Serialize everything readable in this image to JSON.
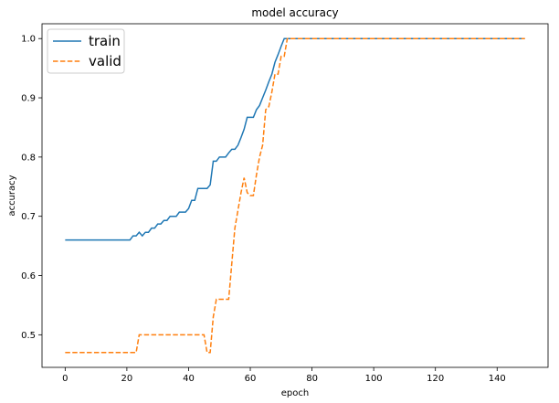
{
  "chart_data": {
    "type": "line",
    "title": "model accuracy",
    "xlabel": "epoch",
    "ylabel": "accuracy",
    "xlim": [
      -7.5,
      156.5
    ],
    "ylim": [
      0.445,
      1.025
    ],
    "x_ticks": [
      0,
      20,
      40,
      60,
      80,
      100,
      120,
      140
    ],
    "y_ticks": [
      0.5,
      0.6,
      0.7,
      0.8,
      0.9,
      1.0
    ],
    "y_tick_labels": [
      "0.5",
      "0.6",
      "0.7",
      "0.8",
      "0.9",
      "1.0"
    ],
    "grid": false,
    "legend_position": "top-left",
    "series": [
      {
        "name": "train",
        "color": "#1f77b4",
        "style": "solid",
        "points": [
          [
            0,
            0.66
          ],
          [
            21,
            0.66
          ],
          [
            22,
            0.667
          ],
          [
            23,
            0.667
          ],
          [
            24,
            0.673
          ],
          [
            25,
            0.667
          ],
          [
            26,
            0.673
          ],
          [
            27,
            0.673
          ],
          [
            28,
            0.68
          ],
          [
            29,
            0.68
          ],
          [
            30,
            0.687
          ],
          [
            31,
            0.687
          ],
          [
            32,
            0.693
          ],
          [
            33,
            0.693
          ],
          [
            34,
            0.7
          ],
          [
            35,
            0.7
          ],
          [
            36,
            0.7
          ],
          [
            37,
            0.707
          ],
          [
            38,
            0.707
          ],
          [
            39,
            0.707
          ],
          [
            40,
            0.713
          ],
          [
            41,
            0.727
          ],
          [
            42,
            0.727
          ],
          [
            43,
            0.747
          ],
          [
            44,
            0.747
          ],
          [
            45,
            0.747
          ],
          [
            46,
            0.747
          ],
          [
            47,
            0.753
          ],
          [
            48,
            0.793
          ],
          [
            49,
            0.793
          ],
          [
            50,
            0.8
          ],
          [
            51,
            0.8
          ],
          [
            52,
            0.8
          ],
          [
            53,
            0.807
          ],
          [
            54,
            0.813
          ],
          [
            55,
            0.813
          ],
          [
            56,
            0.82
          ],
          [
            57,
            0.833
          ],
          [
            58,
            0.847
          ],
          [
            59,
            0.867
          ],
          [
            60,
            0.867
          ],
          [
            61,
            0.867
          ],
          [
            62,
            0.88
          ],
          [
            63,
            0.887
          ],
          [
            64,
            0.9
          ],
          [
            65,
            0.913
          ],
          [
            66,
            0.927
          ],
          [
            67,
            0.94
          ],
          [
            68,
            0.96
          ],
          [
            69,
            0.973
          ],
          [
            70,
            0.987
          ],
          [
            71,
            1.0
          ],
          [
            149,
            1.0
          ]
        ]
      },
      {
        "name": "valid",
        "color": "#ff7f0e",
        "style": "dashed",
        "points": [
          [
            0,
            0.47
          ],
          [
            23,
            0.47
          ],
          [
            24,
            0.5
          ],
          [
            45,
            0.5
          ],
          [
            46,
            0.47
          ],
          [
            47,
            0.47
          ],
          [
            48,
            0.53
          ],
          [
            49,
            0.56
          ],
          [
            52,
            0.56
          ],
          [
            53,
            0.56
          ],
          [
            54,
            0.62
          ],
          [
            55,
            0.68
          ],
          [
            56,
            0.71
          ],
          [
            57,
            0.74
          ],
          [
            58,
            0.765
          ],
          [
            59,
            0.74
          ],
          [
            60,
            0.735
          ],
          [
            61,
            0.735
          ],
          [
            62,
            0.77
          ],
          [
            63,
            0.8
          ],
          [
            64,
            0.82
          ],
          [
            65,
            0.88
          ],
          [
            66,
            0.885
          ],
          [
            67,
            0.91
          ],
          [
            68,
            0.94
          ],
          [
            69,
            0.94
          ],
          [
            70,
            0.97
          ],
          [
            71,
            0.97
          ],
          [
            72,
            1.0
          ],
          [
            149,
            1.0
          ]
        ]
      }
    ]
  }
}
